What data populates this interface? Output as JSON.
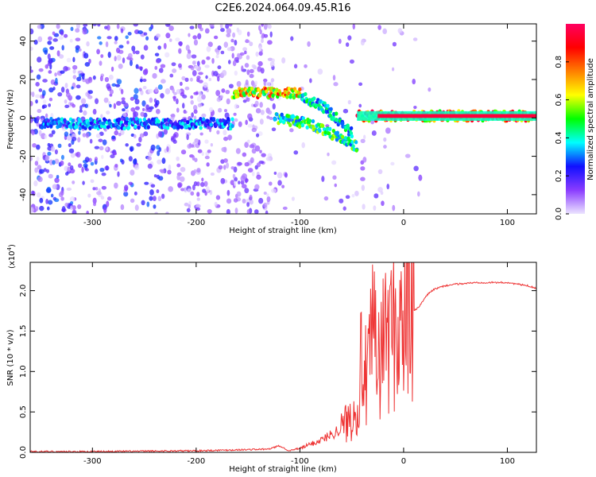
{
  "title": "C2E6.2024.064.09.45.R16",
  "colors": {
    "snr_line": "#ee3333",
    "axis": "#000000",
    "colorbar": [
      "#ece4ff",
      "#8a3cff",
      "#1010ff",
      "#00ffff",
      "#00ff00",
      "#ffff00",
      "#ff7f00",
      "#ff0000",
      "#ff0060"
    ]
  },
  "chart_data": [
    {
      "type": "heatmap",
      "name": "spectrogram",
      "xlabel": "Height of straight line (km)",
      "ylabel": "Frequency (Hz)",
      "xlim": [
        -360,
        128
      ],
      "ylim": [
        -50,
        49
      ],
      "xticks": [
        -300,
        -200,
        -100,
        0,
        100
      ],
      "yticks": [
        -40,
        -20,
        0,
        20,
        40
      ],
      "colorbar": {
        "label": "Normalized spectral amplitude",
        "range": [
          0,
          1
        ],
        "ticks": [
          0.0,
          0.2,
          0.4,
          0.6,
          0.8
        ]
      },
      "features": [
        {
          "x_range": [
            -350,
            -165
          ],
          "y": -3,
          "level": 0.4
        },
        {
          "x_range": [
            -165,
            -100
          ],
          "y": 13,
          "level": 0.9
        },
        {
          "x_range": [
            -125,
            -45
          ],
          "y_path": [
            [
              -125,
              0
            ],
            [
              -90,
              -3
            ],
            [
              -45,
              -15
            ]
          ],
          "level": 0.6
        },
        {
          "x_range": [
            -100,
            -50
          ],
          "y_path": [
            [
              -100,
              12
            ],
            [
              -75,
              5
            ],
            [
              -50,
              -8
            ]
          ],
          "level": 0.5
        },
        {
          "x_range": [
            -45,
            128
          ],
          "y": 1,
          "level": 1.0
        }
      ]
    },
    {
      "type": "line",
      "name": "snr",
      "xlabel": "Height of straight line (km)",
      "ylabel": "SNR (10 * v/v)",
      "multiplier_label": "(x10",
      "multiplier_exp": "4",
      "xlim": [
        -360,
        128
      ],
      "ylim": [
        0,
        2.35
      ],
      "xticks": [
        -300,
        -200,
        -100,
        0,
        100
      ],
      "yticks": [
        0.0,
        0.5,
        1.0,
        1.5,
        2.0
      ],
      "series": [
        {
          "x": [
            -360,
            -300,
            -200,
            -130,
            -120,
            -110,
            -100,
            -90,
            -80,
            -70,
            -60,
            -50,
            -45,
            -40,
            -35,
            -30,
            -25,
            -20,
            -15,
            -10,
            -5,
            0,
            5,
            10,
            15,
            20,
            25,
            30,
            40,
            50,
            60,
            70,
            80,
            90,
            100,
            110,
            120,
            128
          ],
          "y": [
            0.01,
            0.01,
            0.02,
            0.04,
            0.08,
            0.02,
            0.05,
            0.1,
            0.15,
            0.22,
            0.3,
            0.45,
            0.6,
            1.2,
            0.8,
            1.5,
            1.1,
            1.3,
            1.6,
            1.45,
            1.6,
            1.55,
            1.7,
            1.75,
            1.8,
            1.9,
            1.98,
            2.02,
            2.06,
            2.08,
            2.09,
            2.1,
            2.1,
            2.1,
            2.1,
            2.08,
            2.06,
            2.03
          ]
        }
      ]
    }
  ]
}
